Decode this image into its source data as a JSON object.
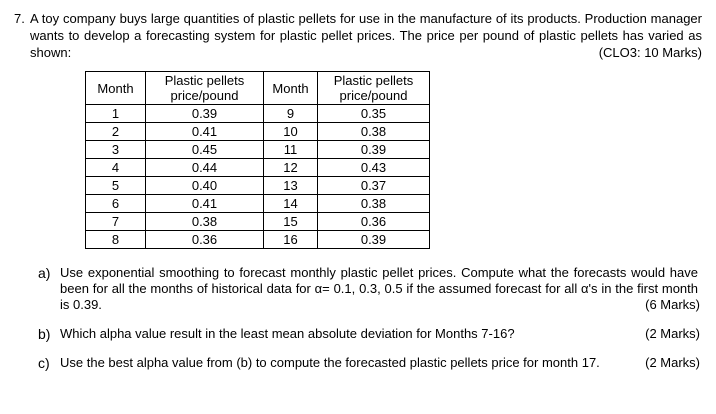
{
  "question": {
    "number": "7.",
    "text": "A toy company buys large quantities of plastic pellets for use in the manufacture of its products. Production manager wants to develop a forecasting system for plastic pellet prices. The price per pound of plastic pellets has varied as shown:",
    "clo": "(CLO3: 10 Marks)"
  },
  "table": {
    "headers": [
      "Month",
      "Plastic pellets\nprice/pound",
      "Month",
      "Plastic pellets\nprice/pound"
    ],
    "rows": [
      [
        "1",
        "0.39",
        "9",
        "0.35"
      ],
      [
        "2",
        "0.41",
        "10",
        "0.38"
      ],
      [
        "3",
        "0.45",
        "11",
        "0.39"
      ],
      [
        "4",
        "0.44",
        "12",
        "0.43"
      ],
      [
        "5",
        "0.40",
        "13",
        "0.37"
      ],
      [
        "6",
        "0.41",
        "14",
        "0.38"
      ],
      [
        "7",
        "0.38",
        "15",
        "0.36"
      ],
      [
        "8",
        "0.36",
        "16",
        "0.39"
      ]
    ]
  },
  "parts": [
    {
      "label": "a)",
      "text": "Use exponential smoothing to forecast monthly plastic pellet prices. Compute what the forecasts would have been for all the months of historical data for α= 0.1, 0.3, 0.5 if the assumed forecast for all α's in the first month is 0.39.",
      "marks": "(6 Marks)"
    },
    {
      "label": "b)",
      "text": "Which alpha value result in the least mean absolute deviation for Months 7-16?",
      "marks": "(2 Marks)"
    },
    {
      "label": "c)",
      "text": "Use the best alpha value from (b) to compute the forecasted plastic pellets price for month 17.",
      "marks": "(2 Marks)"
    }
  ]
}
